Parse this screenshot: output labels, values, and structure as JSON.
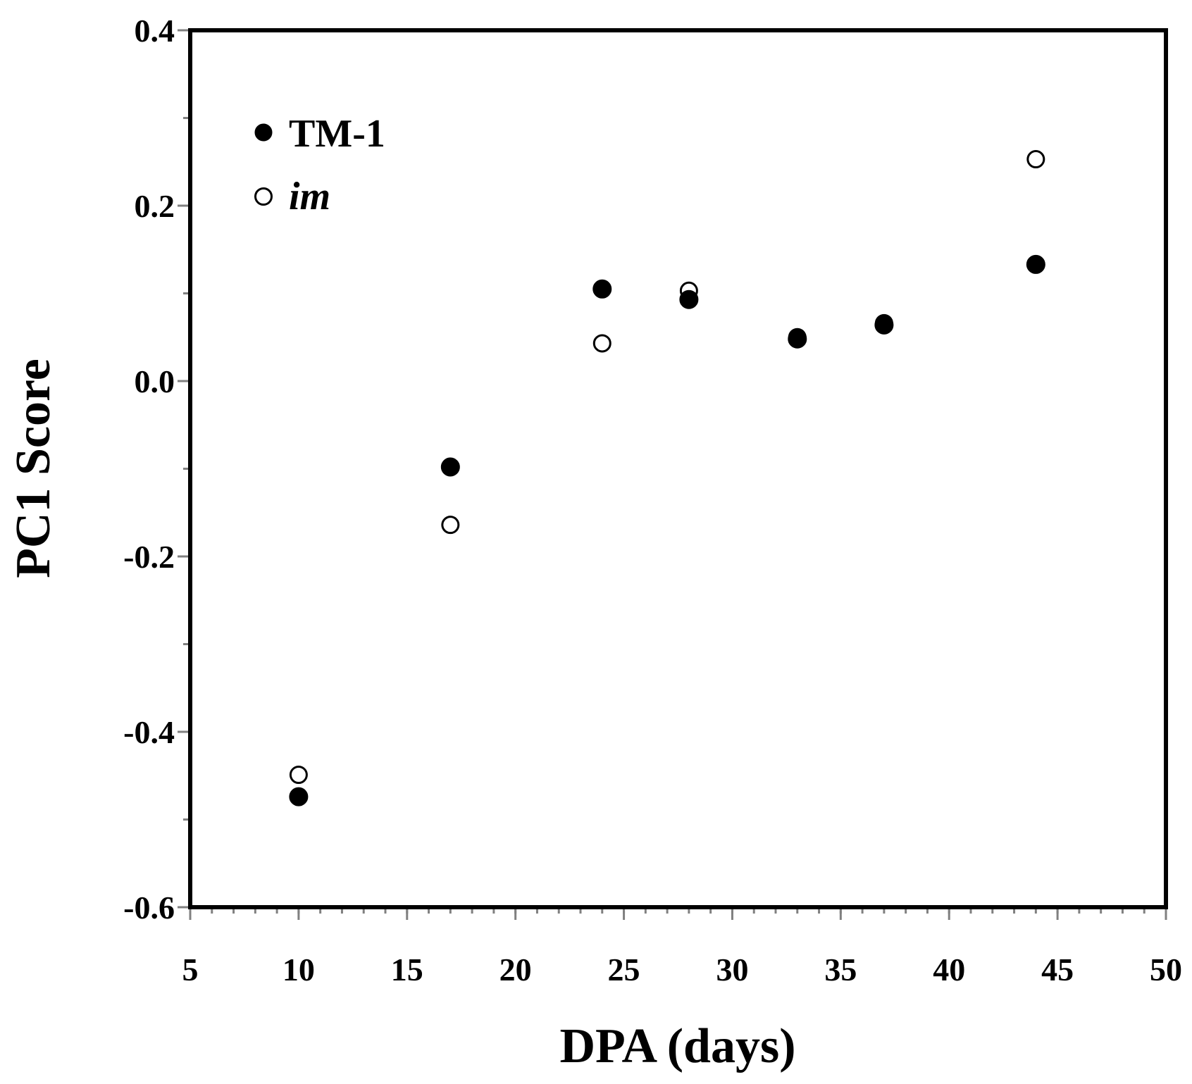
{
  "chart_data": {
    "type": "scatter",
    "title": "",
    "xlabel": "DPA (days)",
    "ylabel": "PC1 Score",
    "xlim": [
      5,
      50
    ],
    "ylim": [
      -0.6,
      0.4
    ],
    "x_major_ticks": [
      5,
      10,
      15,
      20,
      25,
      30,
      35,
      40,
      45,
      50
    ],
    "x_minor_step": 1,
    "y_major_ticks": [
      -0.6,
      -0.4,
      -0.2,
      0.0,
      0.2,
      0.4
    ],
    "y_tick_labels": [
      "-0.6",
      "-0.4",
      "-0.2",
      "0.0",
      "0.2",
      "0.4"
    ],
    "y_minor_step": 0.1,
    "grid": false,
    "legend_position": "top-left",
    "series": [
      {
        "name": "TM-1",
        "marker": "filled-circle",
        "color": "#000000",
        "x": [
          10,
          17,
          24,
          28,
          33,
          37,
          44
        ],
        "y": [
          -0.474,
          -0.098,
          0.105,
          0.093,
          0.048,
          0.064,
          0.133
        ]
      },
      {
        "name": "im",
        "marker": "open-circle",
        "color": "#000000",
        "x": [
          10,
          17,
          24,
          28,
          33,
          37,
          44
        ],
        "y": [
          -0.449,
          -0.164,
          0.043,
          0.103,
          0.05,
          0.066,
          0.253
        ]
      }
    ]
  }
}
